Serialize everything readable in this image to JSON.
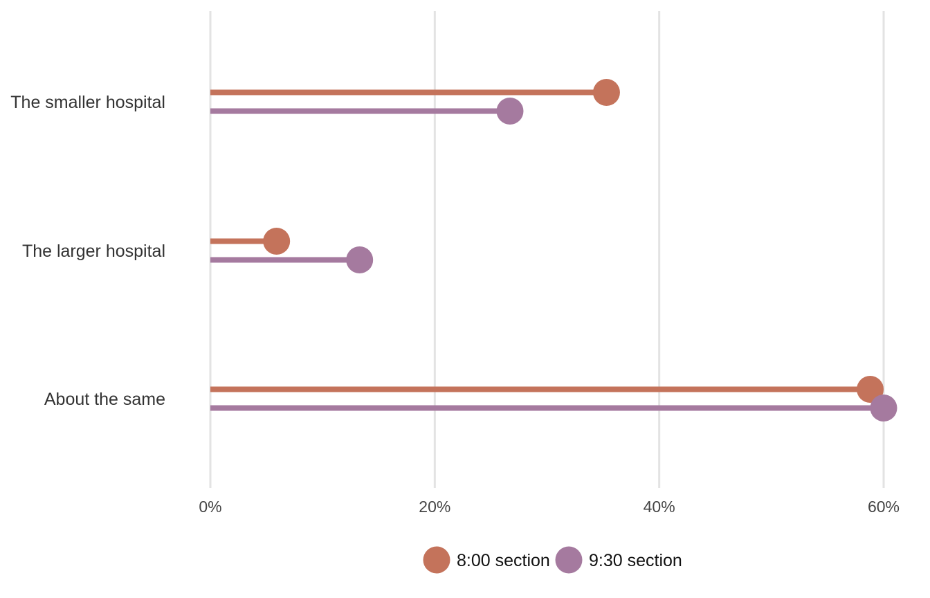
{
  "chart_data": {
    "type": "lollipop",
    "categories": [
      "The smaller hospital",
      "The larger hospital",
      "About the same"
    ],
    "series": [
      {
        "name": "8:00 section",
        "color": "#c4735b",
        "values": [
          35.3,
          5.9,
          58.8
        ]
      },
      {
        "name": "9:30 section",
        "color": "#a57a9f",
        "values": [
          26.7,
          13.3,
          60.0
        ]
      }
    ],
    "x_ticks": [
      {
        "value": 0,
        "label": "0%"
      },
      {
        "value": 20,
        "label": "20%"
      },
      {
        "value": 40,
        "label": "40%"
      },
      {
        "value": 60,
        "label": "60%"
      }
    ],
    "xlim": [
      0,
      60
    ],
    "grid": "vertical",
    "legend_position": "bottom"
  }
}
